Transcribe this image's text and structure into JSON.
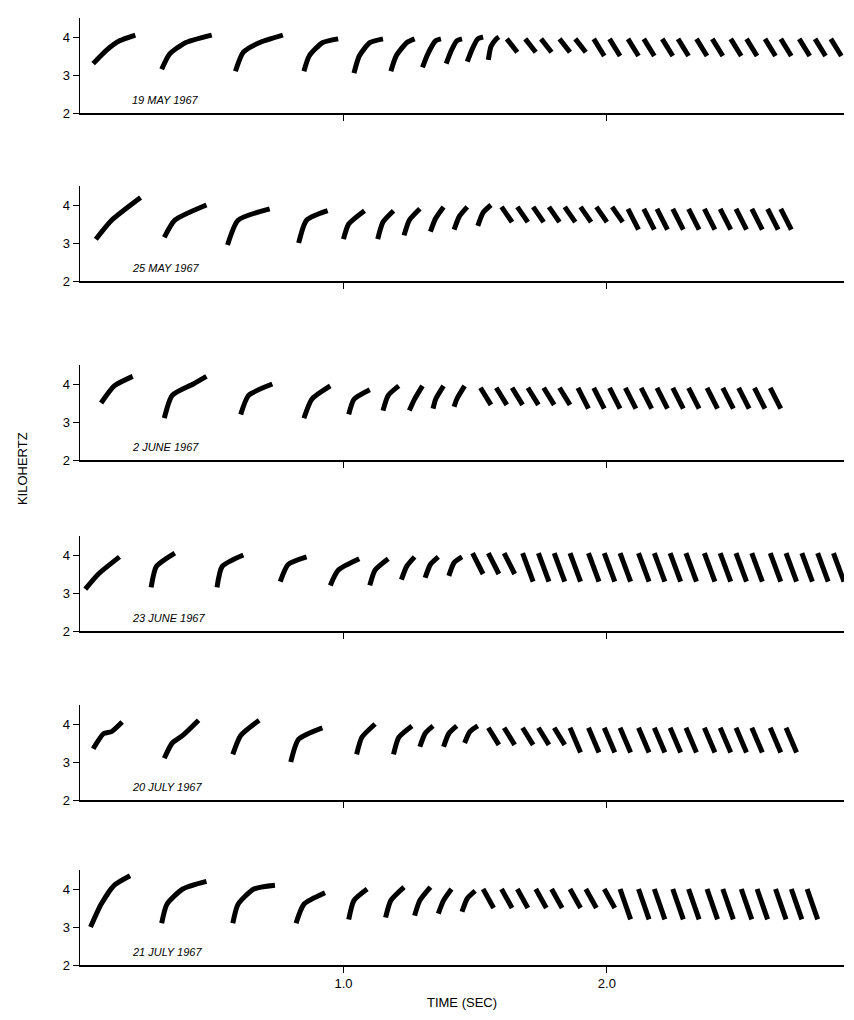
{
  "chart_data": [
    {
      "type": "line",
      "title": "19 MAY 1967",
      "color": "#000000",
      "grid": false,
      "tick_labels": "y",
      "xlim": [
        0,
        2.9
      ],
      "xticks": [
        {
          "value": 1,
          "label": "1.0"
        },
        {
          "value": 2,
          "label": "2.0"
        }
      ],
      "ylim": [
        2,
        4.5
      ],
      "yticks": [
        2,
        3,
        4
      ],
      "x": [
        0.05,
        0.1,
        0.15,
        0.21,
        null,
        0.31,
        0.34,
        0.4,
        0.5,
        null,
        0.59,
        0.62,
        0.68,
        0.77,
        null,
        0.85,
        0.87,
        0.92,
        0.98,
        null,
        1.04,
        1.06,
        1.1,
        1.15,
        null,
        1.18,
        1.2,
        1.24,
        1.27,
        null,
        1.3,
        1.32,
        1.35,
        1.37,
        null,
        1.39,
        1.41,
        1.43,
        1.45,
        null,
        1.47,
        1.49,
        1.51,
        1.53,
        null,
        1.55,
        1.56,
        1.58,
        1.59,
        null,
        1.62,
        1.66,
        null,
        1.69,
        1.73,
        null,
        1.75,
        1.79,
        null,
        1.82,
        1.86,
        null,
        1.88,
        1.92,
        null,
        1.95,
        1.99,
        null,
        2.01,
        2.05,
        null,
        2.08,
        2.12,
        null,
        2.14,
        2.18,
        null,
        2.21,
        2.25,
        null,
        2.27,
        2.31,
        null,
        2.34,
        2.38,
        null,
        2.4,
        2.44,
        null,
        2.47,
        2.51,
        null,
        2.53,
        2.57,
        null,
        2.6,
        2.64,
        null,
        2.66,
        2.7,
        null,
        2.73,
        2.77,
        null,
        2.79,
        2.83,
        null,
        2.85,
        2.89
      ],
      "values": [
        3.3,
        3.65,
        3.9,
        4.05,
        null,
        3.15,
        3.55,
        3.85,
        4.05,
        null,
        3.1,
        3.6,
        3.85,
        4.05,
        null,
        3.1,
        3.5,
        3.85,
        3.95,
        null,
        3.05,
        3.5,
        3.85,
        3.95,
        null,
        3.1,
        3.5,
        3.85,
        3.95,
        null,
        3.2,
        3.55,
        3.9,
        3.95,
        null,
        3.3,
        3.65,
        3.9,
        3.95,
        null,
        3.35,
        3.7,
        3.95,
        4.0,
        null,
        3.4,
        3.75,
        3.95,
        4.0,
        null,
        3.95,
        3.6,
        null,
        3.95,
        3.6,
        null,
        3.95,
        3.6,
        null,
        3.95,
        3.6,
        null,
        3.95,
        3.6,
        null,
        3.95,
        3.5,
        null,
        3.95,
        3.5,
        null,
        3.95,
        3.5,
        null,
        3.95,
        3.5,
        null,
        3.95,
        3.5,
        null,
        3.95,
        3.5,
        null,
        3.95,
        3.5,
        null,
        3.95,
        3.5,
        null,
        3.95,
        3.5,
        null,
        3.95,
        3.5,
        null,
        3.95,
        3.5,
        null,
        3.95,
        3.5,
        null,
        3.95,
        3.5,
        null,
        3.95,
        3.5,
        null,
        3.95,
        3.5
      ]
    },
    {
      "type": "line",
      "title": "25 MAY 1967",
      "color": "#000000",
      "grid": false,
      "tick_labels": "y",
      "xlim": [
        0,
        2.9
      ],
      "xticks": [
        {
          "value": 1,
          "label": "1.0"
        },
        {
          "value": 2,
          "label": "2.0"
        }
      ],
      "ylim": [
        2,
        4.5
      ],
      "yticks": [
        2,
        3,
        4
      ],
      "x": [
        0.06,
        0.12,
        0.23,
        null,
        0.32,
        0.36,
        0.48,
        null,
        0.56,
        0.6,
        0.72,
        null,
        0.83,
        0.86,
        0.94,
        null,
        1.0,
        1.02,
        1.08,
        null,
        1.13,
        1.15,
        1.19,
        null,
        1.23,
        1.25,
        1.29,
        null,
        1.33,
        1.35,
        1.38,
        null,
        1.42,
        1.44,
        1.47,
        null,
        1.51,
        1.53,
        1.56,
        null,
        1.6,
        1.64,
        null,
        1.66,
        1.7,
        null,
        1.72,
        1.76,
        null,
        1.78,
        1.82,
        null,
        1.84,
        1.88,
        null,
        1.9,
        1.94,
        null,
        1.96,
        2.0,
        null,
        2.02,
        2.06,
        null,
        2.08,
        2.12,
        null,
        2.14,
        2.18,
        null,
        2.19,
        2.23,
        null,
        2.25,
        2.29,
        null,
        2.31,
        2.35,
        null,
        2.37,
        2.41,
        null,
        2.43,
        2.47,
        null,
        2.49,
        2.53,
        null,
        2.55,
        2.59,
        null,
        2.61,
        2.65,
        null,
        2.66,
        2.7
      ],
      "values": [
        3.1,
        3.6,
        4.2,
        null,
        3.15,
        3.6,
        4.0,
        null,
        2.95,
        3.6,
        3.9,
        null,
        3.0,
        3.6,
        3.85,
        null,
        3.1,
        3.5,
        3.85,
        null,
        3.1,
        3.55,
        3.85,
        null,
        3.2,
        3.6,
        3.9,
        null,
        3.3,
        3.65,
        3.95,
        null,
        3.35,
        3.7,
        3.95,
        null,
        3.45,
        3.8,
        4.0,
        null,
        3.95,
        3.55,
        null,
        3.95,
        3.55,
        null,
        3.95,
        3.55,
        null,
        3.95,
        3.55,
        null,
        3.95,
        3.55,
        null,
        3.95,
        3.55,
        null,
        3.95,
        3.55,
        null,
        3.95,
        3.55,
        null,
        3.9,
        3.35,
        null,
        3.9,
        3.35,
        null,
        3.9,
        3.35,
        null,
        3.9,
        3.35,
        null,
        3.9,
        3.35,
        null,
        3.9,
        3.35,
        null,
        3.9,
        3.35,
        null,
        3.9,
        3.35,
        null,
        3.9,
        3.35,
        null,
        3.9,
        3.35,
        null,
        3.9,
        3.35
      ]
    },
    {
      "type": "line",
      "title": "2 JUNE 1967",
      "ylabel": "KILOHERTZ",
      "color": "#000000",
      "grid": false,
      "tick_labels": "y",
      "xlim": [
        0,
        2.9
      ],
      "xticks": [
        {
          "value": 1,
          "label": "1.0"
        },
        {
          "value": 2,
          "label": "2.0"
        }
      ],
      "ylim": [
        2,
        4.5
      ],
      "yticks": [
        2,
        3,
        4
      ],
      "x": [
        0.08,
        0.13,
        0.2,
        null,
        0.32,
        0.35,
        0.43,
        0.48,
        null,
        0.61,
        0.64,
        0.73,
        null,
        0.85,
        0.88,
        0.95,
        null,
        1.02,
        1.04,
        1.1,
        null,
        1.15,
        1.17,
        1.21,
        null,
        1.25,
        1.27,
        1.3,
        null,
        1.34,
        1.35,
        1.38,
        null,
        1.42,
        1.43,
        1.46,
        null,
        1.52,
        1.56,
        null,
        1.58,
        1.62,
        null,
        1.64,
        1.68,
        null,
        1.7,
        1.74,
        null,
        1.76,
        1.8,
        null,
        1.82,
        1.86,
        null,
        1.89,
        1.93,
        null,
        1.95,
        1.99,
        null,
        2.01,
        2.05,
        null,
        2.07,
        2.11,
        null,
        2.13,
        2.17,
        null,
        2.19,
        2.23,
        null,
        2.25,
        2.29,
        null,
        2.31,
        2.35,
        null,
        2.38,
        2.42,
        null,
        2.44,
        2.48,
        null,
        2.5,
        2.54,
        null,
        2.56,
        2.6,
        null,
        2.62,
        2.66
      ],
      "values": [
        3.5,
        3.95,
        4.2,
        null,
        3.1,
        3.7,
        4.0,
        4.2,
        null,
        3.2,
        3.7,
        4.0,
        null,
        3.1,
        3.6,
        3.95,
        null,
        3.2,
        3.6,
        3.85,
        null,
        3.3,
        3.7,
        3.95,
        null,
        3.3,
        3.6,
        3.95,
        null,
        3.35,
        3.6,
        3.95,
        null,
        3.4,
        3.6,
        3.95,
        null,
        3.9,
        3.45,
        null,
        3.9,
        3.45,
        null,
        3.9,
        3.45,
        null,
        3.9,
        3.45,
        null,
        3.9,
        3.45,
        null,
        3.9,
        3.45,
        null,
        3.9,
        3.35,
        null,
        3.9,
        3.35,
        null,
        3.9,
        3.35,
        null,
        3.9,
        3.35,
        null,
        3.9,
        3.35,
        null,
        3.9,
        3.35,
        null,
        3.9,
        3.35,
        null,
        3.9,
        3.35,
        null,
        3.9,
        3.35,
        null,
        3.9,
        3.35,
        null,
        3.9,
        3.35,
        null,
        3.9,
        3.35,
        null,
        3.9,
        3.35
      ]
    },
    {
      "type": "line",
      "title": "23 JUNE 1967",
      "color": "#000000",
      "grid": false,
      "tick_labels": "y",
      "xlim": [
        0,
        2.9
      ],
      "xticks": [
        {
          "value": 1,
          "label": "1.0"
        },
        {
          "value": 2,
          "label": "2.0"
        }
      ],
      "ylim": [
        2,
        4.5
      ],
      "yticks": [
        2,
        3,
        4
      ],
      "x": [
        0.02,
        0.07,
        0.15,
        null,
        0.27,
        0.29,
        0.36,
        null,
        0.52,
        0.54,
        0.62,
        null,
        0.76,
        0.79,
        0.86,
        null,
        0.95,
        0.98,
        1.06,
        null,
        1.1,
        1.12,
        1.17,
        null,
        1.22,
        1.24,
        1.27,
        null,
        1.31,
        1.33,
        1.36,
        null,
        1.4,
        1.42,
        1.45,
        null,
        1.49,
        1.53,
        null,
        1.55,
        1.59,
        null,
        1.61,
        1.65,
        null,
        1.68,
        1.72,
        null,
        1.74,
        1.78,
        null,
        1.8,
        1.84,
        null,
        1.86,
        1.9,
        null,
        1.93,
        1.97,
        null,
        1.99,
        2.03,
        null,
        2.05,
        2.09,
        null,
        2.12,
        2.16,
        null,
        2.18,
        2.22,
        null,
        2.24,
        2.28,
        null,
        2.3,
        2.34,
        null,
        2.37,
        2.41,
        null,
        2.43,
        2.47,
        null,
        2.49,
        2.53,
        null,
        2.55,
        2.59,
        null,
        2.62,
        2.66,
        null,
        2.68,
        2.72,
        null,
        2.74,
        2.78,
        null,
        2.8,
        2.84,
        null,
        2.86,
        2.9
      ],
      "values": [
        3.1,
        3.5,
        3.95,
        null,
        3.15,
        3.7,
        4.05,
        null,
        3.15,
        3.7,
        4.0,
        null,
        3.3,
        3.75,
        3.95,
        null,
        3.2,
        3.6,
        3.9,
        null,
        3.2,
        3.6,
        3.9,
        null,
        3.35,
        3.7,
        3.95,
        null,
        3.4,
        3.75,
        3.95,
        null,
        3.45,
        3.8,
        3.95,
        null,
        4.05,
        3.5,
        null,
        4.05,
        3.5,
        null,
        4.05,
        3.5,
        null,
        4.05,
        3.3,
        null,
        4.05,
        3.3,
        null,
        4.05,
        3.3,
        null,
        4.05,
        3.3,
        null,
        4.05,
        3.3,
        null,
        4.05,
        3.3,
        null,
        4.05,
        3.3,
        null,
        4.05,
        3.3,
        null,
        4.05,
        3.3,
        null,
        4.05,
        3.3,
        null,
        4.05,
        3.3,
        null,
        4.05,
        3.3,
        null,
        4.05,
        3.3,
        null,
        4.05,
        3.3,
        null,
        4.05,
        3.3,
        null,
        4.05,
        3.3,
        null,
        4.05,
        3.3,
        null,
        4.05,
        3.3,
        null,
        4.05,
        3.3,
        null,
        4.05,
        3.3
      ]
    },
    {
      "type": "line",
      "title": "20 JULY 1967",
      "color": "#000000",
      "grid": false,
      "tick_labels": "y",
      "xlim": [
        0,
        2.9
      ],
      "xticks": [
        {
          "value": 1,
          "label": "1.0"
        },
        {
          "value": 2,
          "label": "2.0"
        }
      ],
      "ylim": [
        2,
        4.5
      ],
      "yticks": [
        2,
        3,
        4
      ],
      "x": [
        0.05,
        0.09,
        0.12,
        0.16,
        null,
        0.32,
        0.35,
        0.39,
        0.45,
        null,
        0.58,
        0.61,
        0.68,
        null,
        0.8,
        0.83,
        0.92,
        null,
        1.05,
        1.07,
        1.12,
        null,
        1.19,
        1.21,
        1.26,
        null,
        1.29,
        1.31,
        1.34,
        null,
        1.38,
        1.4,
        1.43,
        null,
        1.46,
        1.48,
        1.51,
        null,
        1.55,
        1.59,
        null,
        1.61,
        1.65,
        null,
        1.68,
        1.72,
        null,
        1.74,
        1.78,
        null,
        1.8,
        1.84,
        null,
        1.86,
        1.9,
        null,
        1.93,
        1.97,
        null,
        1.99,
        2.03,
        null,
        2.05,
        2.09,
        null,
        2.12,
        2.16,
        null,
        2.18,
        2.22,
        null,
        2.24,
        2.28,
        null,
        2.3,
        2.34,
        null,
        2.37,
        2.41,
        null,
        2.43,
        2.47,
        null,
        2.49,
        2.53,
        null,
        2.55,
        2.59,
        null,
        2.62,
        2.66,
        null,
        2.68,
        2.72
      ],
      "values": [
        3.35,
        3.75,
        3.8,
        4.05,
        null,
        3.1,
        3.5,
        3.7,
        4.1,
        null,
        3.2,
        3.7,
        4.1,
        null,
        3.0,
        3.6,
        3.9,
        null,
        3.2,
        3.65,
        4.0,
        null,
        3.2,
        3.65,
        3.95,
        null,
        3.4,
        3.75,
        3.95,
        null,
        3.4,
        3.75,
        3.95,
        null,
        3.5,
        3.8,
        3.95,
        null,
        3.9,
        3.45,
        null,
        3.9,
        3.45,
        null,
        3.9,
        3.45,
        null,
        3.9,
        3.45,
        null,
        3.9,
        3.45,
        null,
        3.9,
        3.25,
        null,
        3.9,
        3.25,
        null,
        3.9,
        3.25,
        null,
        3.9,
        3.25,
        null,
        3.9,
        3.25,
        null,
        3.9,
        3.25,
        null,
        3.9,
        3.25,
        null,
        3.9,
        3.25,
        null,
        3.9,
        3.25,
        null,
        3.9,
        3.25,
        null,
        3.9,
        3.25,
        null,
        3.9,
        3.25,
        null,
        3.9,
        3.25,
        null,
        3.9,
        3.25
      ]
    },
    {
      "type": "line",
      "title": "21 JULY 1967",
      "xlabel": "TIME (SEC)",
      "color": "#000000",
      "grid": false,
      "xlim": [
        0,
        2.9
      ],
      "xticks": [
        {
          "value": 1,
          "label": "1.0"
        },
        {
          "value": 2,
          "label": "2.0"
        }
      ],
      "ylim": [
        2,
        4.5
      ],
      "yticks": [
        2,
        3,
        4
      ],
      "x": [
        0.04,
        0.08,
        0.13,
        0.19,
        null,
        0.31,
        0.33,
        0.39,
        0.48,
        null,
        0.58,
        0.6,
        0.66,
        0.74,
        null,
        0.82,
        0.85,
        0.93,
        null,
        1.02,
        1.04,
        1.09,
        null,
        1.16,
        1.18,
        1.23,
        null,
        1.27,
        1.29,
        1.33,
        null,
        1.36,
        1.38,
        1.41,
        null,
        1.45,
        1.47,
        1.5,
        null,
        1.53,
        1.57,
        null,
        1.6,
        1.64,
        null,
        1.66,
        1.7,
        null,
        1.73,
        1.77,
        null,
        1.79,
        1.83,
        null,
        1.86,
        1.9,
        null,
        1.92,
        1.96,
        null,
        1.99,
        2.03,
        null,
        2.05,
        2.09,
        null,
        2.12,
        2.16,
        null,
        2.18,
        2.22,
        null,
        2.25,
        2.29,
        null,
        2.31,
        2.35,
        null,
        2.38,
        2.42,
        null,
        2.44,
        2.48,
        null,
        2.51,
        2.55,
        null,
        2.57,
        2.61,
        null,
        2.64,
        2.68,
        null,
        2.7,
        2.74,
        null,
        2.76,
        2.8
      ],
      "values": [
        3.0,
        3.6,
        4.1,
        4.35,
        null,
        3.1,
        3.6,
        4.0,
        4.2,
        null,
        3.1,
        3.6,
        4.0,
        4.1,
        null,
        3.1,
        3.6,
        3.9,
        null,
        3.2,
        3.7,
        4.0,
        null,
        3.25,
        3.7,
        4.05,
        null,
        3.3,
        3.7,
        4.05,
        null,
        3.35,
        3.7,
        4.0,
        null,
        3.4,
        3.75,
        3.95,
        null,
        4.0,
        3.5,
        null,
        4.0,
        3.5,
        null,
        4.0,
        3.5,
        null,
        4.0,
        3.5,
        null,
        4.0,
        3.5,
        null,
        4.0,
        3.5,
        null,
        4.0,
        3.5,
        null,
        4.0,
        3.5,
        null,
        4.0,
        3.2,
        null,
        4.0,
        3.2,
        null,
        4.0,
        3.2,
        null,
        4.0,
        3.2,
        null,
        4.0,
        3.2,
        null,
        4.0,
        3.2,
        null,
        4.0,
        3.2,
        null,
        4.0,
        3.2,
        null,
        4.0,
        3.2,
        null,
        4.0,
        3.2,
        null,
        4.0,
        3.2,
        null,
        4.0,
        3.2
      ]
    }
  ]
}
